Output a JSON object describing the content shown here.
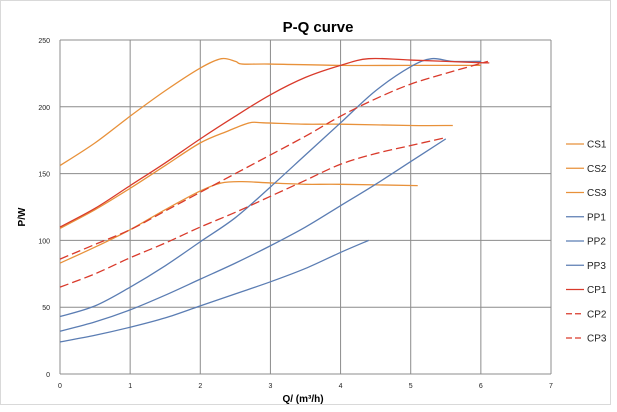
{
  "chart_data": {
    "type": "line",
    "title": "P-Q  curve",
    "xlabel": "Q/  (m³/h)",
    "ylabel": "P/W",
    "xlim": [
      0,
      7
    ],
    "ylim": [
      0,
      250
    ],
    "x_ticks": [
      "0",
      "1",
      "2",
      "3",
      "4",
      "5",
      "6",
      "7"
    ],
    "y_ticks": [
      "0",
      "50",
      "100",
      "150",
      "200",
      "250"
    ],
    "grid": true,
    "legend_position": "right",
    "series": [
      {
        "name": "CS1",
        "color": "#E8913A",
        "dash": "solid",
        "points": [
          [
            0,
            156
          ],
          [
            0.5,
            173
          ],
          [
            1,
            193
          ],
          [
            1.5,
            212
          ],
          [
            2,
            229
          ],
          [
            2.3,
            236
          ],
          [
            2.5,
            234
          ],
          [
            2.6,
            232
          ],
          [
            3,
            232
          ],
          [
            4,
            231
          ],
          [
            5,
            231
          ],
          [
            6,
            231
          ]
        ]
      },
      {
        "name": "CS2",
        "color": "#E8913A",
        "dash": "solid",
        "points": [
          [
            0,
            109
          ],
          [
            0.5,
            123
          ],
          [
            1,
            139
          ],
          [
            1.5,
            156
          ],
          [
            2,
            173
          ],
          [
            2.4,
            182
          ],
          [
            2.7,
            188
          ],
          [
            2.9,
            188
          ],
          [
            3.5,
            187
          ],
          [
            4,
            187
          ],
          [
            5,
            186
          ],
          [
            5.6,
            186
          ]
        ]
      },
      {
        "name": "CS3",
        "color": "#E8913A",
        "dash": "solid",
        "points": [
          [
            0,
            83
          ],
          [
            0.5,
            95
          ],
          [
            1,
            108
          ],
          [
            1.5,
            123
          ],
          [
            2,
            137
          ],
          [
            2.3,
            143
          ],
          [
            2.6,
            144
          ],
          [
            3,
            143
          ],
          [
            3.5,
            142
          ],
          [
            4,
            142
          ],
          [
            5.1,
            141
          ]
        ]
      },
      {
        "name": "PP1",
        "color": "#5B7DB3",
        "dash": "solid",
        "points": [
          [
            0,
            43
          ],
          [
            0.5,
            51
          ],
          [
            1,
            65
          ],
          [
            1.5,
            81
          ],
          [
            2,
            99
          ],
          [
            2.5,
            117
          ],
          [
            3,
            140
          ],
          [
            3.5,
            164
          ],
          [
            4,
            188
          ],
          [
            4.5,
            212
          ],
          [
            5,
            230
          ],
          [
            5.3,
            236
          ],
          [
            5.6,
            234
          ],
          [
            6,
            234
          ]
        ]
      },
      {
        "name": "PP2",
        "color": "#5B7DB3",
        "dash": "solid",
        "points": [
          [
            0,
            32
          ],
          [
            0.5,
            39
          ],
          [
            1,
            48
          ],
          [
            1.5,
            59
          ],
          [
            2,
            71
          ],
          [
            2.5,
            83
          ],
          [
            3,
            96
          ],
          [
            3.5,
            110
          ],
          [
            4,
            126
          ],
          [
            4.5,
            142
          ],
          [
            5,
            159
          ],
          [
            5.5,
            176
          ]
        ]
      },
      {
        "name": "PP3",
        "color": "#5B7DB3",
        "dash": "solid",
        "points": [
          [
            0,
            24
          ],
          [
            0.5,
            29
          ],
          [
            1,
            35
          ],
          [
            1.5,
            42
          ],
          [
            2,
            51
          ],
          [
            2.5,
            60
          ],
          [
            3,
            69
          ],
          [
            3.5,
            79
          ],
          [
            4,
            91
          ],
          [
            4.4,
            100
          ]
        ]
      },
      {
        "name": "CP1",
        "color": "#D93A2B",
        "dash": "solid",
        "points": [
          [
            0,
            110
          ],
          [
            0.5,
            124
          ],
          [
            1,
            141
          ],
          [
            1.5,
            158
          ],
          [
            2,
            176
          ],
          [
            2.5,
            193
          ],
          [
            3,
            209
          ],
          [
            3.5,
            222
          ],
          [
            4,
            231
          ],
          [
            4.4,
            236
          ],
          [
            5,
            235
          ],
          [
            6,
            233
          ],
          [
            6.1,
            233
          ]
        ]
      },
      {
        "name": "CP2",
        "color": "#D93A2B",
        "dash": "dashed",
        "points": [
          [
            0,
            86
          ],
          [
            0.5,
            97
          ],
          [
            1,
            108
          ],
          [
            1.5,
            122
          ],
          [
            2,
            136
          ],
          [
            2.5,
            150
          ],
          [
            3,
            164
          ],
          [
            3.5,
            178
          ],
          [
            4,
            193
          ],
          [
            4.5,
            206
          ],
          [
            5,
            217
          ],
          [
            5.5,
            225
          ],
          [
            6.1,
            234
          ]
        ]
      },
      {
        "name": "CP3",
        "color": "#D93A2B",
        "dash": "dashed",
        "points": [
          [
            0,
            65
          ],
          [
            0.5,
            75
          ],
          [
            1,
            87
          ],
          [
            1.5,
            98
          ],
          [
            2,
            110
          ],
          [
            2.5,
            121
          ],
          [
            3,
            133
          ],
          [
            3.5,
            145
          ],
          [
            4,
            157
          ],
          [
            4.5,
            165
          ],
          [
            5,
            171
          ],
          [
            5.5,
            177
          ]
        ]
      }
    ]
  }
}
